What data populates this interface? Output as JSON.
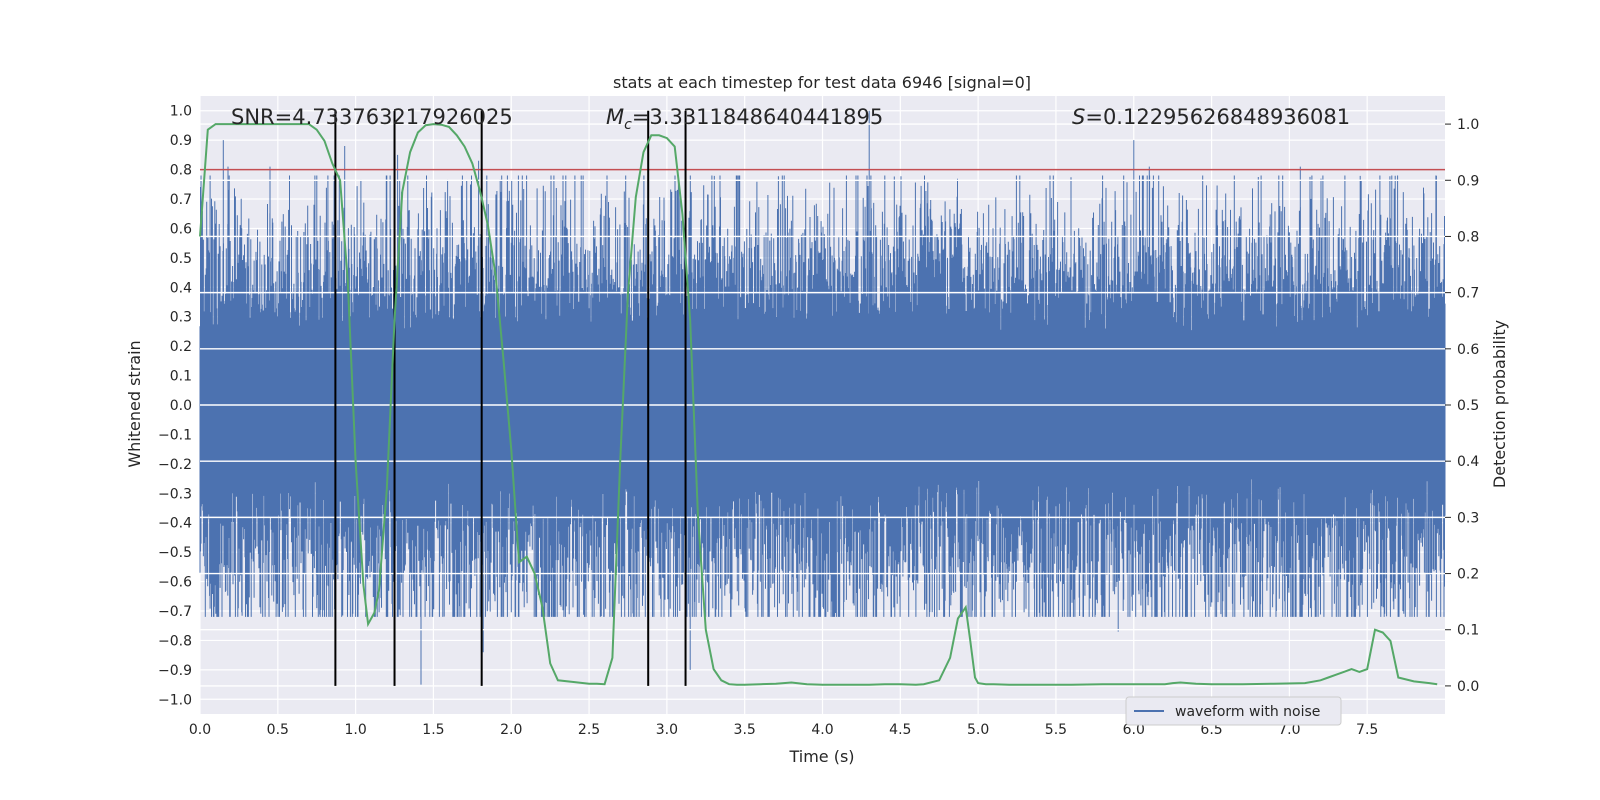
{
  "chart_data": {
    "type": "line",
    "title": "stats at each timestep for test data 6946 [signal=0]",
    "xlabel": "Time (s)",
    "ylabel_left": "Whitened strain",
    "ylabel_right": "Detection probability",
    "xlim": [
      0,
      8
    ],
    "ylim_left": [
      -1.05,
      1.05
    ],
    "ylim_right": [
      -0.05,
      1.05
    ],
    "xticks": [
      "0.0",
      "0.5",
      "1.0",
      "1.5",
      "2.0",
      "2.5",
      "3.0",
      "3.5",
      "4.0",
      "4.5",
      "5.0",
      "5.5",
      "6.0",
      "6.5",
      "7.0",
      "7.5"
    ],
    "yticks_left": [
      "1.0",
      "0.9",
      "0.8",
      "0.7",
      "0.6",
      "0.5",
      "0.4",
      "0.3",
      "0.2",
      "0.1",
      "0.0",
      "-0.1",
      "-0.2",
      "-0.3",
      "-0.4",
      "-0.5",
      "-0.6",
      "-0.7",
      "-0.8",
      "-0.9",
      "-1.0"
    ],
    "yticks_right": [
      "1.0",
      "0.9",
      "0.8",
      "0.7",
      "0.6",
      "0.5",
      "0.4",
      "0.3",
      "0.2",
      "0.1",
      "0.0"
    ],
    "grid": true,
    "legend_position": "lower-right",
    "annotations": {
      "snr": "SNR=4.733763217926025",
      "mc_symbol": "M",
      "mc_subscript": "c",
      "mc_value": "=3.3311848640441895",
      "s_symbol": "S",
      "s_value": "=0.12295626848936081"
    },
    "threshold": {
      "value": 0.8,
      "axis": "left",
      "color": "#c44e52"
    },
    "vertical_markers": [
      0.87,
      1.25,
      1.81,
      2.88,
      3.12
    ],
    "marker_color": "#000000",
    "series": [
      {
        "name": "waveform with noise",
        "axis": "left",
        "color": "#4c72b0",
        "description_values": "dense whitened noise between about -0.95 and 1.0",
        "peaks": [
          [
            0.15,
            0.9
          ],
          [
            0.18,
            0.81
          ],
          [
            0.45,
            0.81
          ],
          [
            0.93,
            0.88
          ],
          [
            1.27,
            0.85
          ],
          [
            1.42,
            -0.95
          ],
          [
            1.79,
            0.83
          ],
          [
            4.3,
            1.0
          ],
          [
            6.0,
            0.9
          ],
          [
            6.1,
            0.81
          ],
          [
            7.07,
            0.81
          ],
          [
            1.82,
            -0.84
          ],
          [
            0.87,
            -0.9
          ],
          [
            3.15,
            -0.9
          ],
          [
            5.9,
            -0.77
          ]
        ]
      },
      {
        "name": "",
        "axis": "right",
        "color": "#55a868",
        "x": [
          0.0,
          0.05,
          0.1,
          0.2,
          0.3,
          0.4,
          0.5,
          0.6,
          0.7,
          0.75,
          0.8,
          0.85,
          0.9,
          0.95,
          1.0,
          1.05,
          1.08,
          1.12,
          1.15,
          1.2,
          1.25,
          1.3,
          1.35,
          1.4,
          1.45,
          1.5,
          1.55,
          1.6,
          1.65,
          1.7,
          1.75,
          1.8,
          1.85,
          1.9,
          1.95,
          2.0,
          2.05,
          2.1,
          2.15,
          2.2,
          2.25,
          2.3,
          2.4,
          2.5,
          2.55,
          2.6,
          2.65,
          2.7,
          2.75,
          2.8,
          2.85,
          2.9,
          2.95,
          3.0,
          3.05,
          3.1,
          3.15,
          3.2,
          3.25,
          3.3,
          3.35,
          3.4,
          3.45,
          3.5,
          3.6,
          3.7,
          3.8,
          3.9,
          4.0,
          4.1,
          4.2,
          4.3,
          4.4,
          4.5,
          4.6,
          4.65,
          4.75,
          4.82,
          4.87,
          4.92,
          4.95,
          4.98,
          5.0,
          5.05,
          5.1,
          5.2,
          5.4,
          5.6,
          5.8,
          6.0,
          6.2,
          6.25,
          6.3,
          6.4,
          6.5,
          6.7,
          6.9,
          7.1,
          7.2,
          7.25,
          7.3,
          7.35,
          7.4,
          7.45,
          7.5,
          7.55,
          7.6,
          7.65,
          7.7,
          7.8,
          7.9,
          7.95
        ],
        "y": [
          0.8,
          0.99,
          1.0,
          1.0,
          1.0,
          1.0,
          1.0,
          1.0,
          1.0,
          0.99,
          0.97,
          0.93,
          0.9,
          0.72,
          0.4,
          0.18,
          0.11,
          0.13,
          0.17,
          0.35,
          0.65,
          0.88,
          0.95,
          0.985,
          0.998,
          1.0,
          0.999,
          0.995,
          0.98,
          0.96,
          0.93,
          0.88,
          0.82,
          0.73,
          0.58,
          0.42,
          0.22,
          0.23,
          0.2,
          0.14,
          0.04,
          0.01,
          0.007,
          0.004,
          0.004,
          0.003,
          0.05,
          0.4,
          0.7,
          0.87,
          0.95,
          0.98,
          0.98,
          0.975,
          0.96,
          0.84,
          0.65,
          0.3,
          0.1,
          0.03,
          0.01,
          0.003,
          0.002,
          0.002,
          0.003,
          0.004,
          0.006,
          0.003,
          0.002,
          0.002,
          0.002,
          0.002,
          0.003,
          0.003,
          0.002,
          0.003,
          0.01,
          0.05,
          0.12,
          0.14,
          0.08,
          0.015,
          0.005,
          0.003,
          0.003,
          0.002,
          0.002,
          0.002,
          0.003,
          0.003,
          0.003,
          0.005,
          0.006,
          0.004,
          0.003,
          0.003,
          0.004,
          0.005,
          0.01,
          0.015,
          0.02,
          0.025,
          0.03,
          0.025,
          0.03,
          0.1,
          0.095,
          0.08,
          0.015,
          0.008,
          0.005,
          0.003
        ]
      }
    ]
  }
}
